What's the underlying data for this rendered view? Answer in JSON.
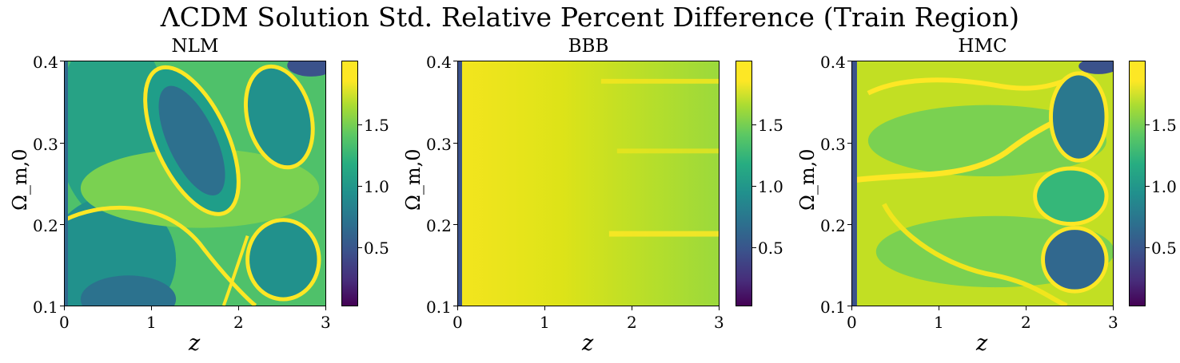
{
  "chart_data": {
    "type": "heatmap",
    "title": "ΛCDM Solution Std. Relative Percent Difference (Train Region)",
    "colormap": "viridis",
    "colors": {
      "low": "#440154",
      "mid": "#21908d",
      "high": "#fde725"
    },
    "panels": [
      {
        "title": "NLM",
        "xlabel": "z",
        "ylabel": "Ω_m,0",
        "xlim": [
          0,
          3
        ],
        "ylim": [
          0.1,
          0.4
        ],
        "xticks": [
          "0",
          "1",
          "2",
          "3"
        ],
        "yticks": [
          "0.1",
          "0.2",
          "0.3",
          "0.4"
        ],
        "colorbar": {
          "ticks": [
            "0.5",
            "1.0",
            "1.5"
          ],
          "range": [
            0.05,
            1.95
          ]
        }
      },
      {
        "title": "BBB",
        "xlabel": "z",
        "ylabel": "Ω_m,0",
        "xlim": [
          0,
          3
        ],
        "ylim": [
          0.1,
          0.4
        ],
        "xticks": [
          "0",
          "1",
          "2",
          "3"
        ],
        "yticks": [
          "0.1",
          "0.2",
          "0.3",
          "0.4"
        ],
        "colorbar": {
          "ticks": [
            "0.5",
            "1.0",
            "1.5"
          ],
          "range": [
            0.05,
            1.95
          ]
        }
      },
      {
        "title": "HMC",
        "xlabel": "z",
        "ylabel": "Ω_m,0",
        "xlim": [
          0,
          3
        ],
        "ylim": [
          0.1,
          0.4
        ],
        "xticks": [
          "0",
          "1",
          "2",
          "3"
        ],
        "yticks": [
          "0.1",
          "0.2",
          "0.3",
          "0.4"
        ],
        "colorbar": {
          "ticks": [
            "0.5",
            "1.0",
            "1.5"
          ],
          "range": [
            0.05,
            1.95
          ]
        }
      }
    ]
  }
}
